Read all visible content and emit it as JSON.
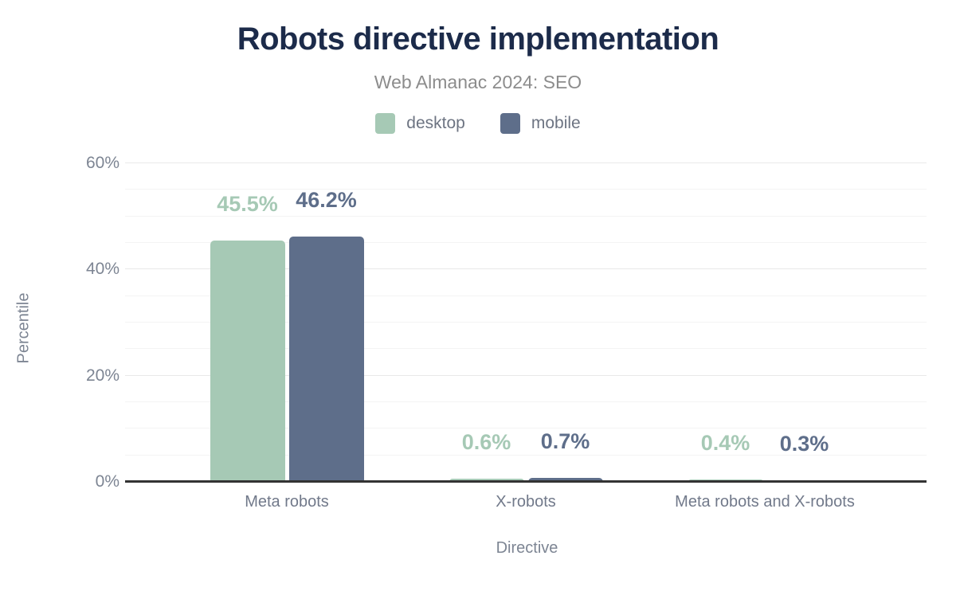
{
  "chart_data": {
    "type": "bar",
    "title": "Robots directive implementation",
    "subtitle": "Web Almanac 2024: SEO",
    "categories": [
      "Meta robots",
      "X-robots",
      "Meta robots and X-robots"
    ],
    "series": [
      {
        "name": "desktop",
        "color": "#a6c9b5",
        "values": [
          45.5,
          0.6,
          0.4
        ],
        "data_labels": [
          "45.5%",
          "0.6%",
          "0.4%"
        ]
      },
      {
        "name": "mobile",
        "color": "#5e6e8a",
        "values": [
          46.2,
          0.7,
          0.3
        ],
        "data_labels": [
          "46.2%",
          "0.7%",
          "0.3%"
        ]
      }
    ],
    "xlabel": "Directive",
    "ylabel": "Percentile",
    "ylim": [
      0,
      60
    ],
    "yticks": [
      0,
      20,
      40,
      60
    ],
    "ytick_labels": [
      "0%",
      "20%",
      "40%",
      "60%"
    ],
    "minor_grid_step": 5,
    "major_grid_step": 20,
    "grid": "horizontal",
    "legend_position": "top",
    "colors": {
      "title": "#1c2b4a",
      "subtitle": "#8c8c8c",
      "tick_text": "#7d8593",
      "axis_line": "#333333",
      "background": "#ffffff"
    }
  }
}
